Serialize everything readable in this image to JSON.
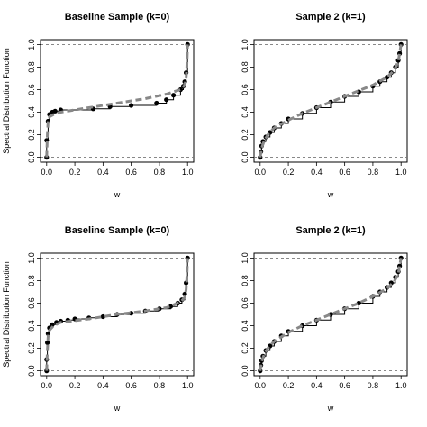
{
  "chart_data": [
    {
      "type": "line",
      "title": "Baseline Sample (k=0)",
      "xlabel": "w",
      "ylabel": "Spectral Distribution Function",
      "xlim": [
        0,
        1
      ],
      "ylim": [
        0,
        1
      ],
      "x_ticks": [
        "0.0",
        "0.2",
        "0.4",
        "0.6",
        "0.8",
        "1.0"
      ],
      "y_ticks": [
        "0.0",
        "0.2",
        "0.4",
        "0.6",
        "0.8",
        "1.0"
      ],
      "reference_lines_y": [
        0,
        1
      ],
      "series": [
        {
          "style": "empirical-step",
          "color": "#000000",
          "x": [
            0.0,
            0.0,
            0.01,
            0.02,
            0.04,
            0.06,
            0.1,
            0.33,
            0.45,
            0.6,
            0.78,
            0.85,
            0.9,
            0.95,
            0.97,
            0.98,
            0.99,
            1.0
          ],
          "y": [
            0.0,
            0.15,
            0.32,
            0.38,
            0.4,
            0.41,
            0.42,
            0.43,
            0.45,
            0.46,
            0.48,
            0.51,
            0.55,
            0.6,
            0.63,
            0.67,
            0.75,
            1.0
          ]
        },
        {
          "style": "fitted-dashed",
          "color": "#888888",
          "x": [
            0.0,
            0.005,
            0.01,
            0.02,
            0.05,
            0.1,
            0.3,
            0.5,
            0.7,
            0.85,
            0.95,
            0.98,
            0.99,
            0.995,
            1.0
          ],
          "y": [
            0.0,
            0.2,
            0.32,
            0.36,
            0.38,
            0.4,
            0.44,
            0.48,
            0.52,
            0.56,
            0.6,
            0.64,
            0.7,
            0.8,
            1.0
          ]
        }
      ]
    },
    {
      "type": "line",
      "title": "Sample 2 (k=1)",
      "xlabel": "w",
      "ylabel": "",
      "xlim": [
        0,
        1
      ],
      "ylim": [
        0,
        1
      ],
      "x_ticks": [
        "0.0",
        "0.2",
        "0.4",
        "0.6",
        "0.8",
        "1.0"
      ],
      "y_ticks": [
        "0.0",
        "0.2",
        "0.4",
        "0.6",
        "0.8",
        "1.0"
      ],
      "reference_lines_y": [
        0,
        1
      ],
      "series": [
        {
          "style": "empirical-step",
          "color": "#000000",
          "x": [
            0.0,
            0.005,
            0.01,
            0.02,
            0.04,
            0.07,
            0.1,
            0.15,
            0.2,
            0.3,
            0.4,
            0.5,
            0.6,
            0.7,
            0.8,
            0.85,
            0.9,
            0.93,
            0.96,
            0.98,
            0.99,
            1.0
          ],
          "y": [
            0.0,
            0.05,
            0.1,
            0.14,
            0.18,
            0.22,
            0.26,
            0.3,
            0.34,
            0.39,
            0.44,
            0.49,
            0.54,
            0.58,
            0.63,
            0.67,
            0.71,
            0.75,
            0.8,
            0.86,
            0.92,
            1.0
          ]
        },
        {
          "style": "fitted-dashed",
          "color": "#888888",
          "x": [
            0.0,
            0.01,
            0.03,
            0.06,
            0.1,
            0.2,
            0.3,
            0.4,
            0.5,
            0.6,
            0.7,
            0.8,
            0.9,
            0.95,
            0.98,
            1.0
          ],
          "y": [
            0.0,
            0.08,
            0.15,
            0.21,
            0.26,
            0.33,
            0.39,
            0.44,
            0.49,
            0.54,
            0.59,
            0.64,
            0.71,
            0.77,
            0.85,
            1.0
          ]
        }
      ]
    },
    {
      "type": "line",
      "title": "Baseline Sample (k=0)",
      "xlabel": "w",
      "ylabel": "Spectral Distribution Function",
      "xlim": [
        0,
        1
      ],
      "ylim": [
        0,
        1
      ],
      "x_ticks": [
        "0.0",
        "0.2",
        "0.4",
        "0.6",
        "0.8",
        "1.0"
      ],
      "y_ticks": [
        "0.0",
        "0.2",
        "0.4",
        "0.6",
        "0.8",
        "1.0"
      ],
      "reference_lines_y": [
        0,
        1
      ],
      "series": [
        {
          "style": "empirical-step",
          "color": "#000000",
          "x": [
            0.0,
            0.0,
            0.005,
            0.01,
            0.02,
            0.04,
            0.07,
            0.1,
            0.15,
            0.2,
            0.3,
            0.4,
            0.5,
            0.6,
            0.7,
            0.8,
            0.88,
            0.93,
            0.96,
            0.98,
            0.99,
            1.0
          ],
          "y": [
            0.0,
            0.1,
            0.25,
            0.33,
            0.38,
            0.41,
            0.43,
            0.44,
            0.45,
            0.46,
            0.47,
            0.48,
            0.5,
            0.51,
            0.53,
            0.55,
            0.57,
            0.6,
            0.63,
            0.68,
            0.78,
            1.0
          ]
        },
        {
          "style": "fitted-dashed",
          "color": "#888888",
          "x": [
            0.0,
            0.005,
            0.01,
            0.02,
            0.05,
            0.1,
            0.3,
            0.5,
            0.7,
            0.85,
            0.95,
            0.98,
            0.99,
            0.995,
            1.0
          ],
          "y": [
            0.0,
            0.18,
            0.3,
            0.36,
            0.4,
            0.43,
            0.46,
            0.5,
            0.53,
            0.56,
            0.61,
            0.65,
            0.72,
            0.82,
            1.0
          ]
        }
      ]
    },
    {
      "type": "line",
      "title": "Sample 2 (k=1)",
      "xlabel": "w",
      "ylabel": "",
      "xlim": [
        0,
        1
      ],
      "ylim": [
        0,
        1
      ],
      "x_ticks": [
        "0.0",
        "0.2",
        "0.4",
        "0.6",
        "0.8",
        "1.0"
      ],
      "y_ticks": [
        "0.0",
        "0.2",
        "0.4",
        "0.6",
        "0.8",
        "1.0"
      ],
      "reference_lines_y": [
        0,
        1
      ],
      "series": [
        {
          "style": "empirical-step",
          "color": "#000000",
          "x": [
            0.0,
            0.005,
            0.01,
            0.02,
            0.04,
            0.07,
            0.1,
            0.15,
            0.2,
            0.3,
            0.4,
            0.5,
            0.6,
            0.7,
            0.8,
            0.85,
            0.9,
            0.93,
            0.96,
            0.98,
            0.99,
            1.0
          ],
          "y": [
            0.0,
            0.05,
            0.09,
            0.13,
            0.18,
            0.22,
            0.26,
            0.31,
            0.35,
            0.4,
            0.45,
            0.5,
            0.55,
            0.6,
            0.66,
            0.7,
            0.74,
            0.78,
            0.83,
            0.88,
            0.93,
            1.0
          ]
        },
        {
          "style": "fitted-dashed",
          "color": "#888888",
          "x": [
            0.0,
            0.01,
            0.03,
            0.06,
            0.1,
            0.2,
            0.3,
            0.4,
            0.5,
            0.6,
            0.7,
            0.8,
            0.9,
            0.95,
            0.98,
            1.0
          ],
          "y": [
            0.0,
            0.08,
            0.15,
            0.21,
            0.26,
            0.34,
            0.4,
            0.45,
            0.5,
            0.55,
            0.6,
            0.66,
            0.73,
            0.79,
            0.86,
            1.0
          ]
        }
      ]
    }
  ]
}
